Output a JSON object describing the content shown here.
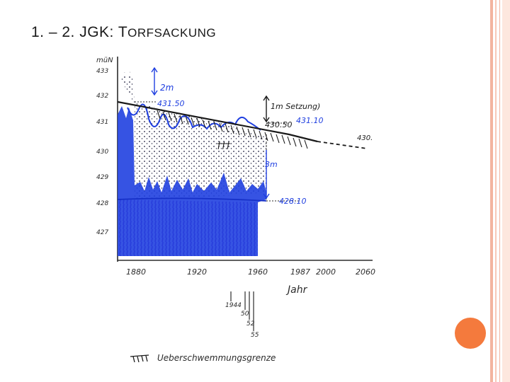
{
  "slide": {
    "title_prefix": "1.  – 2. JGK: T",
    "title_rest": "ORFSACKUNG"
  },
  "diagram": {
    "y_axis_label": "müN",
    "y_ticks": [
      "433",
      "432",
      "431",
      "430",
      "429",
      "428",
      "427"
    ],
    "x_ticks": [
      "1880",
      "1920",
      "1960",
      "1987",
      "2000",
      "2060"
    ],
    "x_axis_label": "Jahr",
    "level_labels": {
      "top_level": "431.50",
      "settle_level": "430.50",
      "right_level": "431.10",
      "far_right_level": "430.",
      "base_level": "428.10"
    },
    "annotations": {
      "two_m": "2m",
      "three_m": "3m",
      "settlement": "1m Setzung)",
      "crosses": "†††"
    },
    "year_marks": [
      "1944",
      "50",
      "52",
      "55"
    ],
    "legend_label": "Ueberschwemmungsgrenze",
    "colors": {
      "ink_blue": "#1f3fe0",
      "pencil": "#2b2b2b",
      "title_text": "#1a1a1a",
      "accent_orange": "#f47a3d",
      "stripe_peach": "#f3b49f"
    }
  }
}
